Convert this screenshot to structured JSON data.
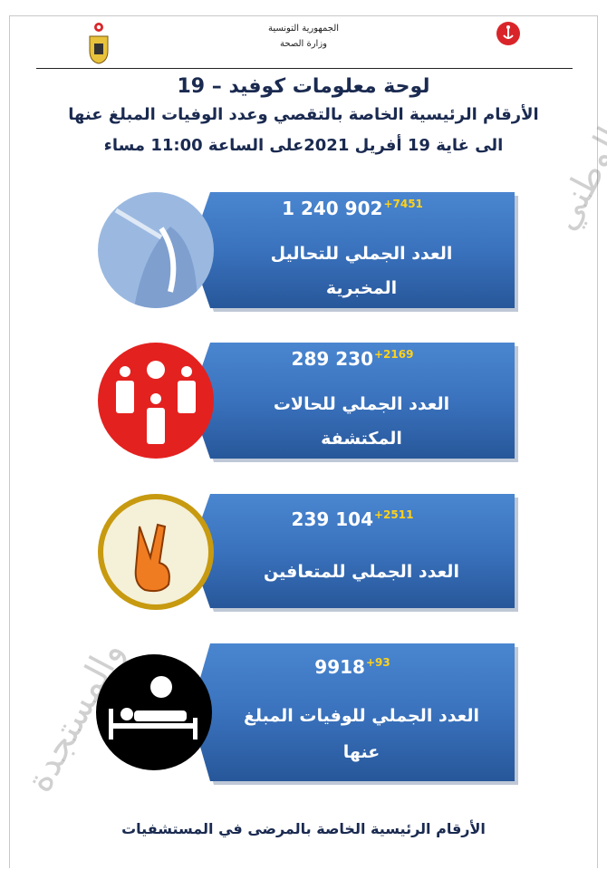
{
  "header": {
    "country": "الجمهورية التونسية",
    "ministry": "وزارة الصحة"
  },
  "title": "لوحة معلومات كوفيد – 19",
  "subtitle": "الأرقام الرئيسية الخاصة بالتقصي وعدد الوفيات المبلغ عنها",
  "date_line": "الى غاية 19 أفريل 2021على الساعة 11:00 مساء",
  "cards": [
    {
      "icon": "nasal-swab-test-icon",
      "value": "1 240 902",
      "delta": "+7451",
      "label_line1": "العدد الجملي للتحاليل",
      "label_line2": "المخبرية",
      "circle_color": "#8eb0dc"
    },
    {
      "icon": "people-virus-icon",
      "value": "289 230",
      "delta": "+2169",
      "label_line1": "العدد  الجملي للحالات",
      "label_line2": "المكتشفة",
      "circle_color": "#e3211f"
    },
    {
      "icon": "victory-hand-icon",
      "value": "239 104",
      "delta": "+2511",
      "label_line1": "العدد الجملي للمتعافين",
      "label_line2": "",
      "circle_color": "#f5f0d8"
    },
    {
      "icon": "patient-bed-virus-icon",
      "value": "9918",
      "delta": "+93",
      "label_line1": "العدد الجملي للوفيات المبلغ",
      "label_line2": "عنها",
      "circle_color": "#000000"
    }
  ],
  "footer": "الأرقام الرئيسية الخاصة بالمرضى في المستشفيات",
  "colors": {
    "card_blue": "#3a72bd",
    "delta_yellow": "#ffd21a",
    "title_navy": "#1a2a50"
  }
}
